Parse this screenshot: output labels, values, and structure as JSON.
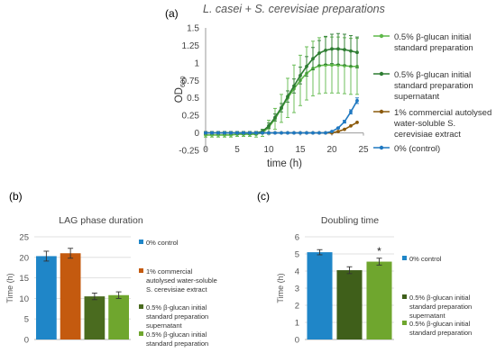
{
  "figure": {
    "panel_a": "(a)",
    "panel_b": "(b)",
    "panel_c": "(c)"
  },
  "chart_data": [
    {
      "type": "line",
      "title": "L. casei + S. cerevisiae preparations",
      "xlabel": "time (h)",
      "ylabel_main": "OD",
      "ylabel_sub": "600",
      "xlim": [
        0,
        25
      ],
      "ylim": [
        -0.25,
        1.5
      ],
      "xticks": [
        0,
        5,
        10,
        15,
        20,
        25
      ],
      "yticks": [
        -0.25,
        0,
        0.25,
        0.5,
        0.75,
        1,
        1.25,
        1.5
      ],
      "ytick_labels": [
        "-0.25",
        "0",
        "0.25",
        "0.5",
        "0.75",
        "1",
        "1.25",
        "1.5"
      ],
      "legend": "right",
      "series": [
        {
          "name_lines": [
            "0.5% β-glucan initial",
            "standard preparation"
          ],
          "color": "#5fb84a",
          "x": [
            0,
            1,
            2,
            3,
            4,
            5,
            6,
            7,
            8,
            9,
            10,
            11,
            12,
            13,
            14,
            15,
            16,
            17,
            18,
            19,
            20,
            21,
            22,
            23,
            24
          ],
          "y": [
            -0.03,
            -0.03,
            -0.03,
            -0.03,
            -0.03,
            -0.02,
            -0.02,
            -0.02,
            -0.02,
            0.0,
            0.08,
            0.2,
            0.35,
            0.5,
            0.63,
            0.75,
            0.85,
            0.92,
            0.96,
            0.97,
            0.97,
            0.97,
            0.96,
            0.95,
            0.95
          ],
          "err": [
            0.03,
            0.03,
            0.03,
            0.03,
            0.03,
            0.03,
            0.03,
            0.03,
            0.04,
            0.05,
            0.1,
            0.15,
            0.2,
            0.28,
            0.34,
            0.36,
            0.38,
            0.39,
            0.4,
            0.4,
            0.4,
            0.4,
            0.4,
            0.4,
            0.4
          ]
        },
        {
          "name_lines": [
            "0.5% β-glucan initial",
            "standard preparation",
            "supernatant"
          ],
          "color": "#2e7d32",
          "x": [
            0,
            1,
            2,
            3,
            4,
            5,
            6,
            7,
            8,
            9,
            10,
            11,
            12,
            13,
            14,
            15,
            16,
            17,
            18,
            19,
            20,
            21,
            22,
            23,
            24
          ],
          "y": [
            0,
            0,
            0,
            0,
            0,
            0,
            0,
            0,
            0,
            0.02,
            0.1,
            0.22,
            0.36,
            0.52,
            0.67,
            0.82,
            0.95,
            1.06,
            1.14,
            1.18,
            1.2,
            1.2,
            1.19,
            1.17,
            1.15
          ],
          "err": [
            0.02,
            0.02,
            0.02,
            0.02,
            0.02,
            0.02,
            0.02,
            0.02,
            0.02,
            0.03,
            0.04,
            0.05,
            0.06,
            0.08,
            0.1,
            0.12,
            0.14,
            0.16,
            0.18,
            0.2,
            0.21,
            0.22,
            0.22,
            0.22,
            0.22
          ]
        },
        {
          "name_lines": [
            "1% commercial autolysed",
            "water-soluble S.",
            "cerevisiae extract"
          ],
          "color": "#8b5a0c",
          "x": [
            0,
            1,
            2,
            3,
            4,
            5,
            6,
            7,
            8,
            9,
            10,
            11,
            12,
            13,
            14,
            15,
            16,
            17,
            18,
            19,
            20,
            21,
            22,
            23,
            24
          ],
          "y": [
            0,
            0,
            0,
            0,
            0,
            0,
            0,
            0,
            0,
            0,
            0,
            0,
            0,
            0,
            0,
            0,
            0,
            0,
            0,
            0,
            0,
            0.02,
            0.05,
            0.1,
            0.15
          ],
          "err": [
            0,
            0,
            0,
            0,
            0,
            0,
            0,
            0,
            0,
            0,
            0,
            0,
            0,
            0,
            0,
            0,
            0,
            0,
            0,
            0,
            0,
            0,
            0,
            0,
            0
          ]
        },
        {
          "name_lines": [
            "0% (control)"
          ],
          "color": "#1f78c1",
          "x": [
            0,
            1,
            2,
            3,
            4,
            5,
            6,
            7,
            8,
            9,
            10,
            11,
            12,
            13,
            14,
            15,
            16,
            17,
            18,
            19,
            20,
            21,
            22,
            23,
            24
          ],
          "y": [
            0,
            0,
            0,
            0,
            0,
            0,
            0,
            0,
            0,
            0,
            0,
            0,
            0,
            0,
            0,
            0,
            0,
            0,
            0,
            0,
            0.02,
            0.07,
            0.16,
            0.3,
            0.46
          ],
          "err": [
            0,
            0,
            0,
            0,
            0,
            0,
            0,
            0,
            0,
            0,
            0,
            0,
            0,
            0,
            0,
            0,
            0,
            0,
            0,
            0,
            0,
            0.01,
            0.02,
            0.03,
            0.04
          ]
        }
      ]
    },
    {
      "type": "bar",
      "title": "LAG phase duration",
      "ylabel": "Time (h)",
      "ylim": [
        0,
        25
      ],
      "yticks": [
        0,
        5,
        10,
        15,
        20,
        25
      ],
      "legend": "right",
      "bars": [
        {
          "value": 20.3,
          "err": 1.2,
          "color": "#1f86c8",
          "legend_lines": [
            "0% control"
          ]
        },
        {
          "value": 21.0,
          "err": 1.2,
          "color": "#c45a0f",
          "legend_lines": [
            "1% commercial",
            "autolysed water-soluble",
            "S. cerevisiae extract"
          ]
        },
        {
          "value": 10.5,
          "err": 0.8,
          "color": "#4a6b1f",
          "legend_lines": [
            "0.5% β-glucan initial",
            "standard preparation",
            "supernatant"
          ]
        },
        {
          "value": 10.8,
          "err": 0.8,
          "color": "#6fa62e",
          "legend_lines": [
            "0.5% β-glucan initial",
            "standard preparation"
          ]
        }
      ]
    },
    {
      "type": "bar",
      "title": "Doubling time",
      "ylabel": "Time (h)",
      "ylim": [
        0,
        6
      ],
      "yticks": [
        0,
        1,
        2,
        3,
        4,
        5,
        6
      ],
      "legend": "right",
      "annotation": "*",
      "bars": [
        {
          "value": 5.1,
          "err": 0.15,
          "color": "#1f86c8",
          "legend_lines": [
            "0% control"
          ]
        },
        {
          "value": 4.05,
          "err": 0.2,
          "color": "#3f5f1a",
          "legend_lines": [
            "0.5% β-glucan initial",
            "standard preparation",
            "supernatant"
          ]
        },
        {
          "value": 4.55,
          "err": 0.2,
          "color": "#6fa62e",
          "legend_lines": [
            "0.5% β-glucan initial",
            "standard preparation"
          ]
        }
      ]
    }
  ]
}
